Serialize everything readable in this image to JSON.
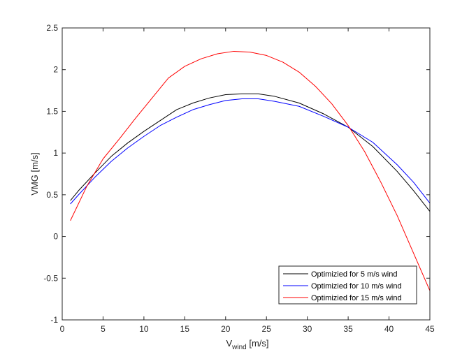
{
  "chart_data": {
    "type": "line",
    "title": "",
    "xlabel": "V",
    "xlabel_subscript": "wind",
    "xlabel_unit": " [m/s]",
    "ylabel": "VMG [m/s]",
    "xlim": [
      0,
      45
    ],
    "ylim": [
      -1,
      2.5
    ],
    "xticks": [
      0,
      5,
      10,
      15,
      20,
      25,
      30,
      35,
      40,
      45
    ],
    "yticks": [
      -1,
      -0.5,
      0,
      0.5,
      1,
      1.5,
      2,
      2.5
    ],
    "xtick_labels": [
      "0",
      "5",
      "10",
      "15",
      "20",
      "25",
      "30",
      "35",
      "40",
      "45"
    ],
    "ytick_labels": [
      "-1",
      "-0.5",
      "0",
      "0.5",
      "1",
      "1.5",
      "2",
      "2.5"
    ],
    "grid": false,
    "legend_position": "bottom-right",
    "series": [
      {
        "name": "Optimizied for 5 m/s wind",
        "color": "#000000",
        "x": [
          1,
          2,
          4,
          6,
          8,
          10,
          12,
          14,
          16,
          18,
          20,
          22,
          24,
          26,
          29,
          32,
          35,
          38,
          41,
          43,
          45
        ],
        "y": [
          0.43,
          0.55,
          0.76,
          0.96,
          1.12,
          1.26,
          1.39,
          1.52,
          1.6,
          1.66,
          1.7,
          1.71,
          1.71,
          1.68,
          1.6,
          1.47,
          1.31,
          1.08,
          0.78,
          0.55,
          0.3
        ]
      },
      {
        "name": "Optimizied for 10 m/s wind",
        "color": "#0000ff",
        "x": [
          1,
          2,
          4,
          6,
          8,
          10,
          12,
          14,
          16,
          18,
          20,
          22,
          24,
          26,
          29,
          32,
          35,
          38,
          41,
          43,
          45
        ],
        "y": [
          0.39,
          0.5,
          0.71,
          0.9,
          1.06,
          1.2,
          1.33,
          1.43,
          1.52,
          1.58,
          1.63,
          1.65,
          1.65,
          1.62,
          1.56,
          1.44,
          1.31,
          1.13,
          0.86,
          0.65,
          0.4
        ]
      },
      {
        "name": "Optimizied for 15 m/s wind",
        "color": "#ff0000",
        "x": [
          1,
          3,
          5,
          7,
          9,
          11,
          13,
          15,
          17,
          19,
          21,
          23,
          25,
          27,
          29,
          31,
          33,
          35,
          37,
          39,
          41,
          43,
          45
        ],
        "y": [
          0.19,
          0.6,
          0.93,
          1.17,
          1.42,
          1.66,
          1.9,
          2.04,
          2.13,
          2.19,
          2.22,
          2.21,
          2.17,
          2.09,
          1.97,
          1.8,
          1.59,
          1.33,
          1.02,
          0.65,
          0.25,
          -0.2,
          -0.65
        ]
      }
    ]
  }
}
